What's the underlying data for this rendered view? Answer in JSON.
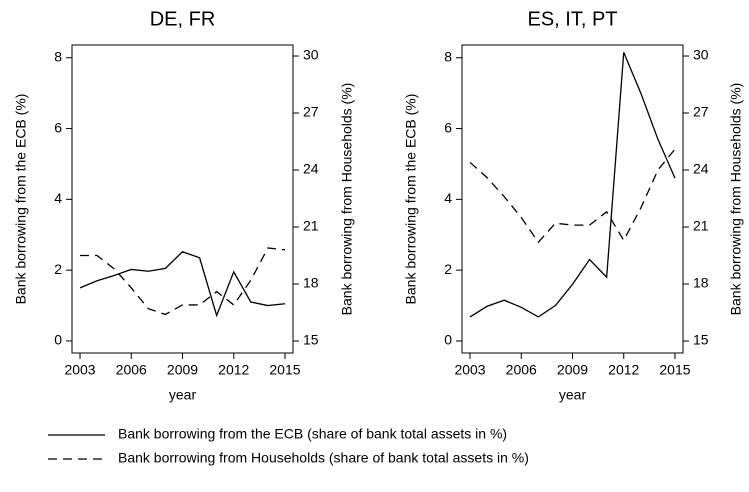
{
  "chart_data": [
    {
      "type": "line",
      "title": "DE, FR",
      "xlabel": "year",
      "ylabel": "Bank borrowing from the ECB (%)",
      "y2label": "Bank borrowing from Households (%)",
      "x": [
        2003,
        2004,
        2005,
        2006,
        2007,
        2008,
        2009,
        2010,
        2011,
        2012,
        2013,
        2014,
        2015
      ],
      "xlim": [
        2002.53,
        2015.47
      ],
      "xticks": [
        2003,
        2006,
        2009,
        2012,
        2015
      ],
      "ylim": [
        -0.34,
        8.36
      ],
      "yticks": [
        0,
        2,
        4,
        6,
        8
      ],
      "y2lim": [
        14.37,
        30.58
      ],
      "y2ticks": [
        15,
        18,
        21,
        24,
        27,
        30
      ],
      "series": [
        {
          "name": "Bank borrowing from the ECB (share of bank total assets in %)",
          "color": "#000000",
          "style": "solid",
          "values": [
            1.5,
            1.7,
            1.85,
            2.02,
            1.97,
            2.05,
            2.52,
            2.35,
            0.72,
            1.95,
            1.1,
            1.0,
            1.05
          ]
        },
        {
          "name": "Bank borrowing from Households (share of bank total assets in %)",
          "color": "#000000",
          "style": "dashed",
          "axis": "y2",
          "values": [
            19.5,
            19.5,
            18.8,
            17.8,
            16.7,
            16.4,
            16.9,
            16.9,
            17.6,
            16.9,
            18.2,
            19.9,
            19.8
          ]
        }
      ]
    },
    {
      "type": "line",
      "title": "ES, IT, PT",
      "xlabel": "year",
      "ylabel": "Bank borrowing from the ECB (%)",
      "y2label": "Bank borrowing from Households (%)",
      "x": [
        2003,
        2004,
        2005,
        2006,
        2007,
        2008,
        2009,
        2010,
        2011,
        2012,
        2013,
        2014,
        2015
      ],
      "xlim": [
        2002.53,
        2015.47
      ],
      "xticks": [
        2003,
        2006,
        2009,
        2012,
        2015
      ],
      "ylim": [
        -0.34,
        8.36
      ],
      "yticks": [
        0,
        2,
        4,
        6,
        8
      ],
      "y2lim": [
        14.37,
        30.58
      ],
      "y2ticks": [
        15,
        18,
        21,
        24,
        27,
        30
      ],
      "series": [
        {
          "color": "#000000",
          "style": "solid",
          "values": [
            0.68,
            0.98,
            1.15,
            0.95,
            0.68,
            1.0,
            1.6,
            2.3,
            1.8,
            8.15,
            7.0,
            5.7,
            4.6
          ]
        },
        {
          "color": "#000000",
          "style": "dashed",
          "axis": "y2",
          "values": [
            24.4,
            23.6,
            22.6,
            21.5,
            20.2,
            21.2,
            21.1,
            21.1,
            21.8,
            20.3,
            22.0,
            24.0,
            25.1
          ]
        }
      ]
    }
  ]
}
